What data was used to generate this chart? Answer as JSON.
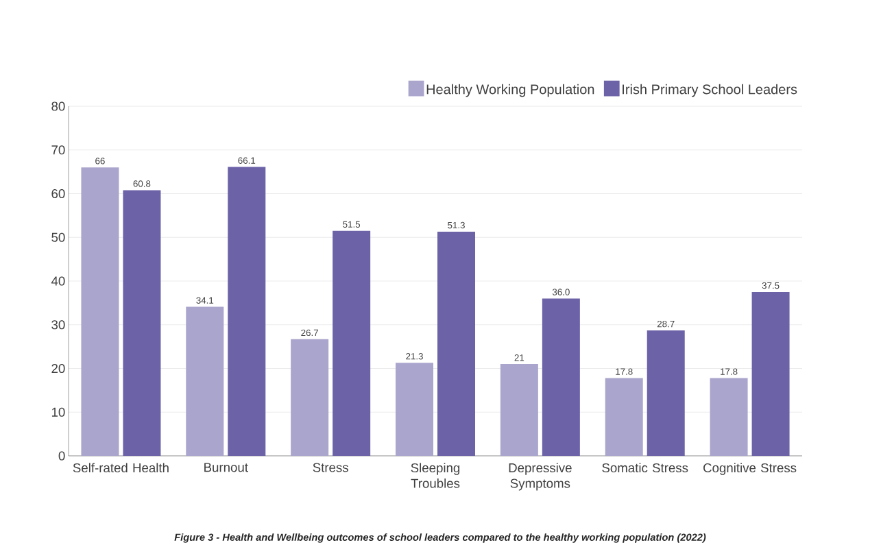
{
  "chart_data": {
    "type": "bar",
    "categories": [
      "Self-rated Health",
      "Burnout",
      "Stress",
      "Sleeping Troubles",
      "Depressive Symptoms",
      "Somatic Stress",
      "Cognitive Stress"
    ],
    "series": [
      {
        "name": "Healthy Working Population",
        "color": "#aaa5cc",
        "values": [
          66,
          34.1,
          26.7,
          21.3,
          21,
          17.8,
          17.8
        ],
        "value_labels": [
          "66",
          "34.1",
          "26.7",
          "21.3",
          "21",
          "17.8",
          "17.8"
        ]
      },
      {
        "name": "Irish Primary School Leaders",
        "color": "#6c62a8",
        "values": [
          60.8,
          66.1,
          51.5,
          51.3,
          36.0,
          28.7,
          37.5
        ],
        "value_labels": [
          "60.8",
          "66.1",
          "51.5",
          "51.3",
          "36.0",
          "28.7",
          "37.5"
        ]
      }
    ],
    "ylim": [
      0,
      80
    ],
    "yticks": [
      0,
      10,
      20,
      30,
      40,
      50,
      60,
      70,
      80
    ],
    "grid": "y",
    "legend": "top right",
    "annotations": [
      "Figure 3 - Health and Wellbeing outcomes of school leaders compared to the healthy working population (2022)"
    ]
  }
}
